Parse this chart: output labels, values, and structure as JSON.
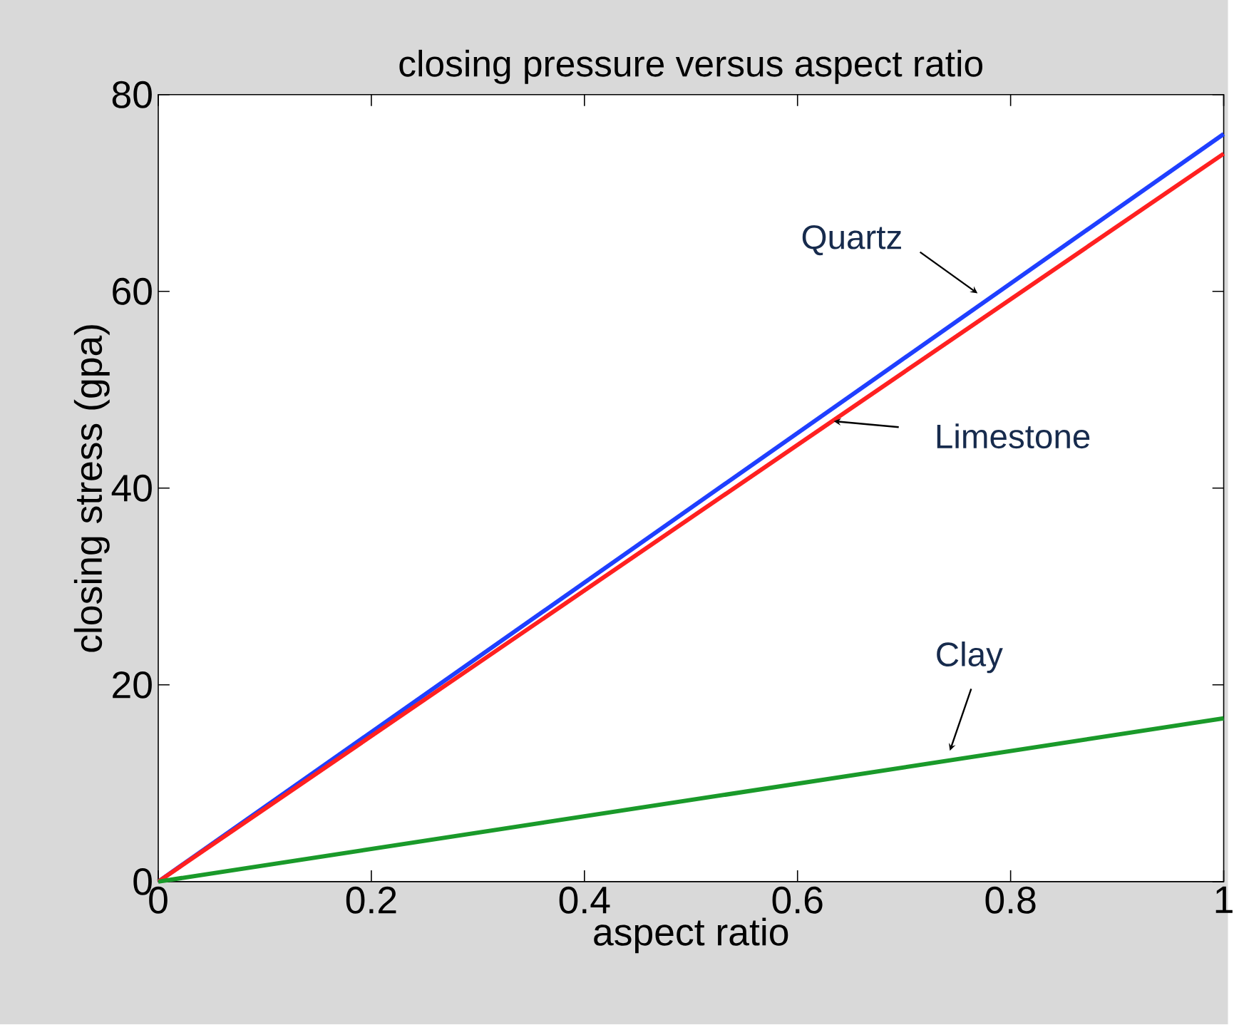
{
  "chart_data": {
    "type": "line",
    "title": "closing pressure versus aspect ratio",
    "xlabel": "aspect ratio",
    "ylabel": "closing stress (gpa)",
    "x": [
      0,
      1
    ],
    "series": [
      {
        "name": "Quartz",
        "color": "#1f3fff",
        "values": [
          0,
          76
        ]
      },
      {
        "name": "Limestone",
        "color": "#ff2020",
        "values": [
          0,
          74
        ]
      },
      {
        "name": "Clay",
        "color": "#1a9a2a",
        "values": [
          0,
          16.6
        ]
      }
    ],
    "xlim": [
      0,
      1
    ],
    "ylim": [
      0,
      80
    ],
    "xticks": [
      0,
      0.2,
      0.4,
      0.6,
      0.8,
      1
    ],
    "yticks": [
      0,
      20,
      40,
      60,
      80
    ],
    "grid": false,
    "marker": "none",
    "line_style": "solid"
  }
}
